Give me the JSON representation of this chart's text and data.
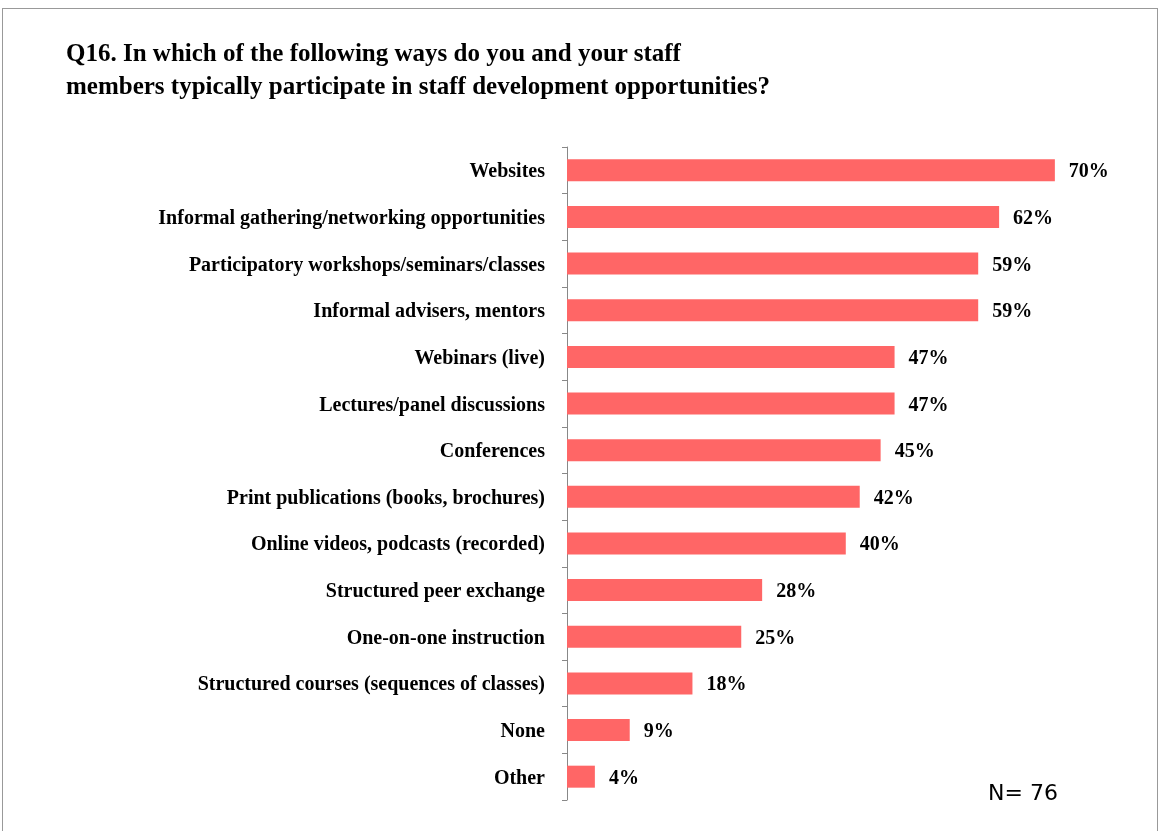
{
  "chart_data": {
    "type": "bar",
    "orientation": "horizontal",
    "title": "Q16. In which of the following ways do you and your staff\nmembers typically participate in staff development opportunities?",
    "categories": [
      "Websites",
      "Informal gathering/networking opportunities",
      "Participatory workshops/seminars/classes",
      "Informal advisers, mentors",
      "Webinars (live)",
      "Lectures/panel discussions",
      "Conferences",
      "Print publications (books, brochures)",
      "Online videos, podcasts (recorded)",
      "Structured peer exchange",
      "One-on-one instruction",
      "Structured courses (sequences of classes)",
      "None",
      "Other"
    ],
    "values": [
      70,
      62,
      59,
      59,
      47,
      47,
      45,
      42,
      40,
      28,
      25,
      18,
      9,
      4
    ],
    "value_labels": [
      "70%",
      "62%",
      "59%",
      "59%",
      "47%",
      "47%",
      "45%",
      "42%",
      "40%",
      "28%",
      "25%",
      "18%",
      "9%",
      "4%"
    ],
    "color": "#ff6666",
    "annotations": [
      "N= 76"
    ]
  }
}
